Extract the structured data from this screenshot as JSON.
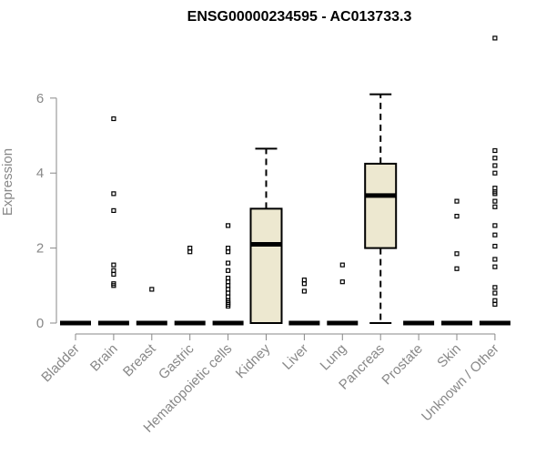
{
  "chart_data": {
    "type": "box",
    "title": "ENSG00000234595 - AC013733.3",
    "ylabel": "Expression",
    "xlabel": "",
    "ylim": [
      0,
      7.6
    ],
    "yticks": [
      0,
      2,
      4,
      6
    ],
    "grid": false,
    "legend": "none",
    "box_fill": "#ede8d0",
    "colors": {
      "axis": "#888888",
      "text_muted": "#888888",
      "box_stroke": "#000000"
    },
    "categories": [
      "Bladder",
      "Brain",
      "Breast",
      "Gastric",
      "Hematopoietic cells",
      "Kidney",
      "Liver",
      "Lung",
      "Pancreas",
      "Prostate",
      "Skin",
      "Unknown / Other"
    ],
    "boxes": [
      {
        "name": "Bladder",
        "min": 0,
        "q1": 0,
        "median": 0,
        "q3": 0,
        "max": 0,
        "outliers": []
      },
      {
        "name": "Brain",
        "min": 0,
        "q1": 0,
        "median": 0,
        "q3": 0,
        "max": 0,
        "outliers": [
          1.0,
          1.05,
          1.3,
          1.4,
          1.55,
          3.0,
          3.45,
          5.45
        ]
      },
      {
        "name": "Breast",
        "min": 0,
        "q1": 0,
        "median": 0,
        "q3": 0,
        "max": 0,
        "outliers": [
          0.9
        ]
      },
      {
        "name": "Gastric",
        "min": 0,
        "q1": 0,
        "median": 0,
        "q3": 0,
        "max": 0,
        "outliers": [
          1.9,
          2.0
        ]
      },
      {
        "name": "Hematopoietic cells",
        "min": 0,
        "q1": 0,
        "median": 0,
        "q3": 0,
        "max": 0,
        "outliers": [
          0.45,
          0.5,
          0.55,
          0.6,
          0.7,
          0.8,
          0.9,
          1.0,
          1.1,
          1.2,
          1.4,
          1.6,
          1.9,
          2.0,
          2.6
        ]
      },
      {
        "name": "Kidney",
        "min": 0,
        "q1": 0,
        "median": 2.1,
        "q3": 3.05,
        "max": 4.65,
        "outliers": []
      },
      {
        "name": "Liver",
        "min": 0,
        "q1": 0,
        "median": 0,
        "q3": 0,
        "max": 0,
        "outliers": [
          0.85,
          1.05,
          1.15
        ]
      },
      {
        "name": "Lung",
        "min": 0,
        "q1": 0,
        "median": 0,
        "q3": 0,
        "max": 0,
        "outliers": [
          1.1,
          1.55
        ]
      },
      {
        "name": "Pancreas",
        "min": 0,
        "q1": 2.0,
        "median": 3.4,
        "q3": 4.25,
        "max": 6.1,
        "outliers": []
      },
      {
        "name": "Prostate",
        "min": 0,
        "q1": 0,
        "median": 0,
        "q3": 0,
        "max": 0,
        "outliers": []
      },
      {
        "name": "Skin",
        "min": 0,
        "q1": 0,
        "median": 0,
        "q3": 0,
        "max": 0,
        "outliers": [
          1.45,
          1.85,
          2.85,
          3.25
        ]
      },
      {
        "name": "Unknown / Other",
        "min": 0,
        "q1": 0,
        "median": 0,
        "q3": 0,
        "max": 0,
        "outliers": [
          0.5,
          0.6,
          0.8,
          0.95,
          1.5,
          1.7,
          2.05,
          2.35,
          2.6,
          3.1,
          3.25,
          3.45,
          3.5,
          3.6,
          4.0,
          4.2,
          4.4,
          4.6,
          7.6
        ]
      }
    ]
  }
}
